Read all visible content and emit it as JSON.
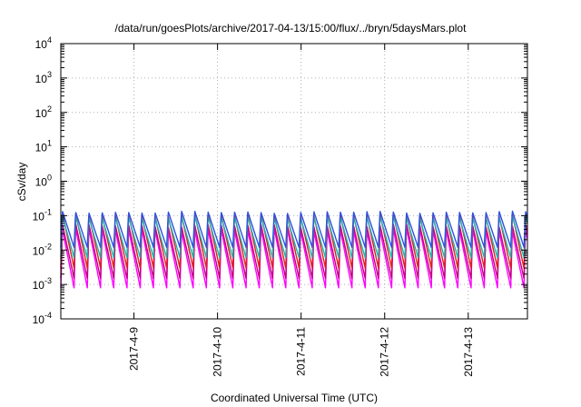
{
  "chart_data": {
    "type": "line",
    "title": "/data/run/goesPlots/archive/2017-04-13/15:00/flux/../bryn/5daysMars.plot",
    "xlabel": "Coordinated Universal Time (UTC)",
    "ylabel": "cSv/day",
    "y_scale": "log",
    "ylim": [
      0.0001,
      10000
    ],
    "xlim": [
      "2017-04-08 03:00",
      "2017-04-13 17:00"
    ],
    "x_ticks": [
      "2017-4-9",
      "2017-4-10",
      "2017-4-11",
      "2017-4-12",
      "2017-4-13"
    ],
    "y_ticks": [
      {
        "base": "10",
        "exp": "-4"
      },
      {
        "base": "10",
        "exp": "-3"
      },
      {
        "base": "10",
        "exp": "-2"
      },
      {
        "base": "10",
        "exp": "-1"
      },
      {
        "base": "10",
        "exp": "0"
      },
      {
        "base": "10",
        "exp": "1"
      },
      {
        "base": "10",
        "exp": "2"
      },
      {
        "base": "10",
        "exp": "3"
      },
      {
        "base": "10",
        "exp": "4"
      }
    ],
    "grid": true,
    "legend": "none",
    "period_hours": 3.8,
    "series": [
      {
        "color": "#ff00ff",
        "peak": 0.045,
        "trough": 0.0008
      },
      {
        "color": "#c0007f",
        "peak": 0.06,
        "trough": 0.0015
      },
      {
        "color": "#e02020",
        "peak": 0.12,
        "trough": 0.003
      },
      {
        "color": "#20b2aa",
        "peak": 0.1,
        "trough": 0.006
      },
      {
        "color": "#3050e0",
        "peak": 0.14,
        "trough": 0.012
      }
    ],
    "colors": {
      "axis": "#000000",
      "grid": "#b0b0b0"
    }
  }
}
